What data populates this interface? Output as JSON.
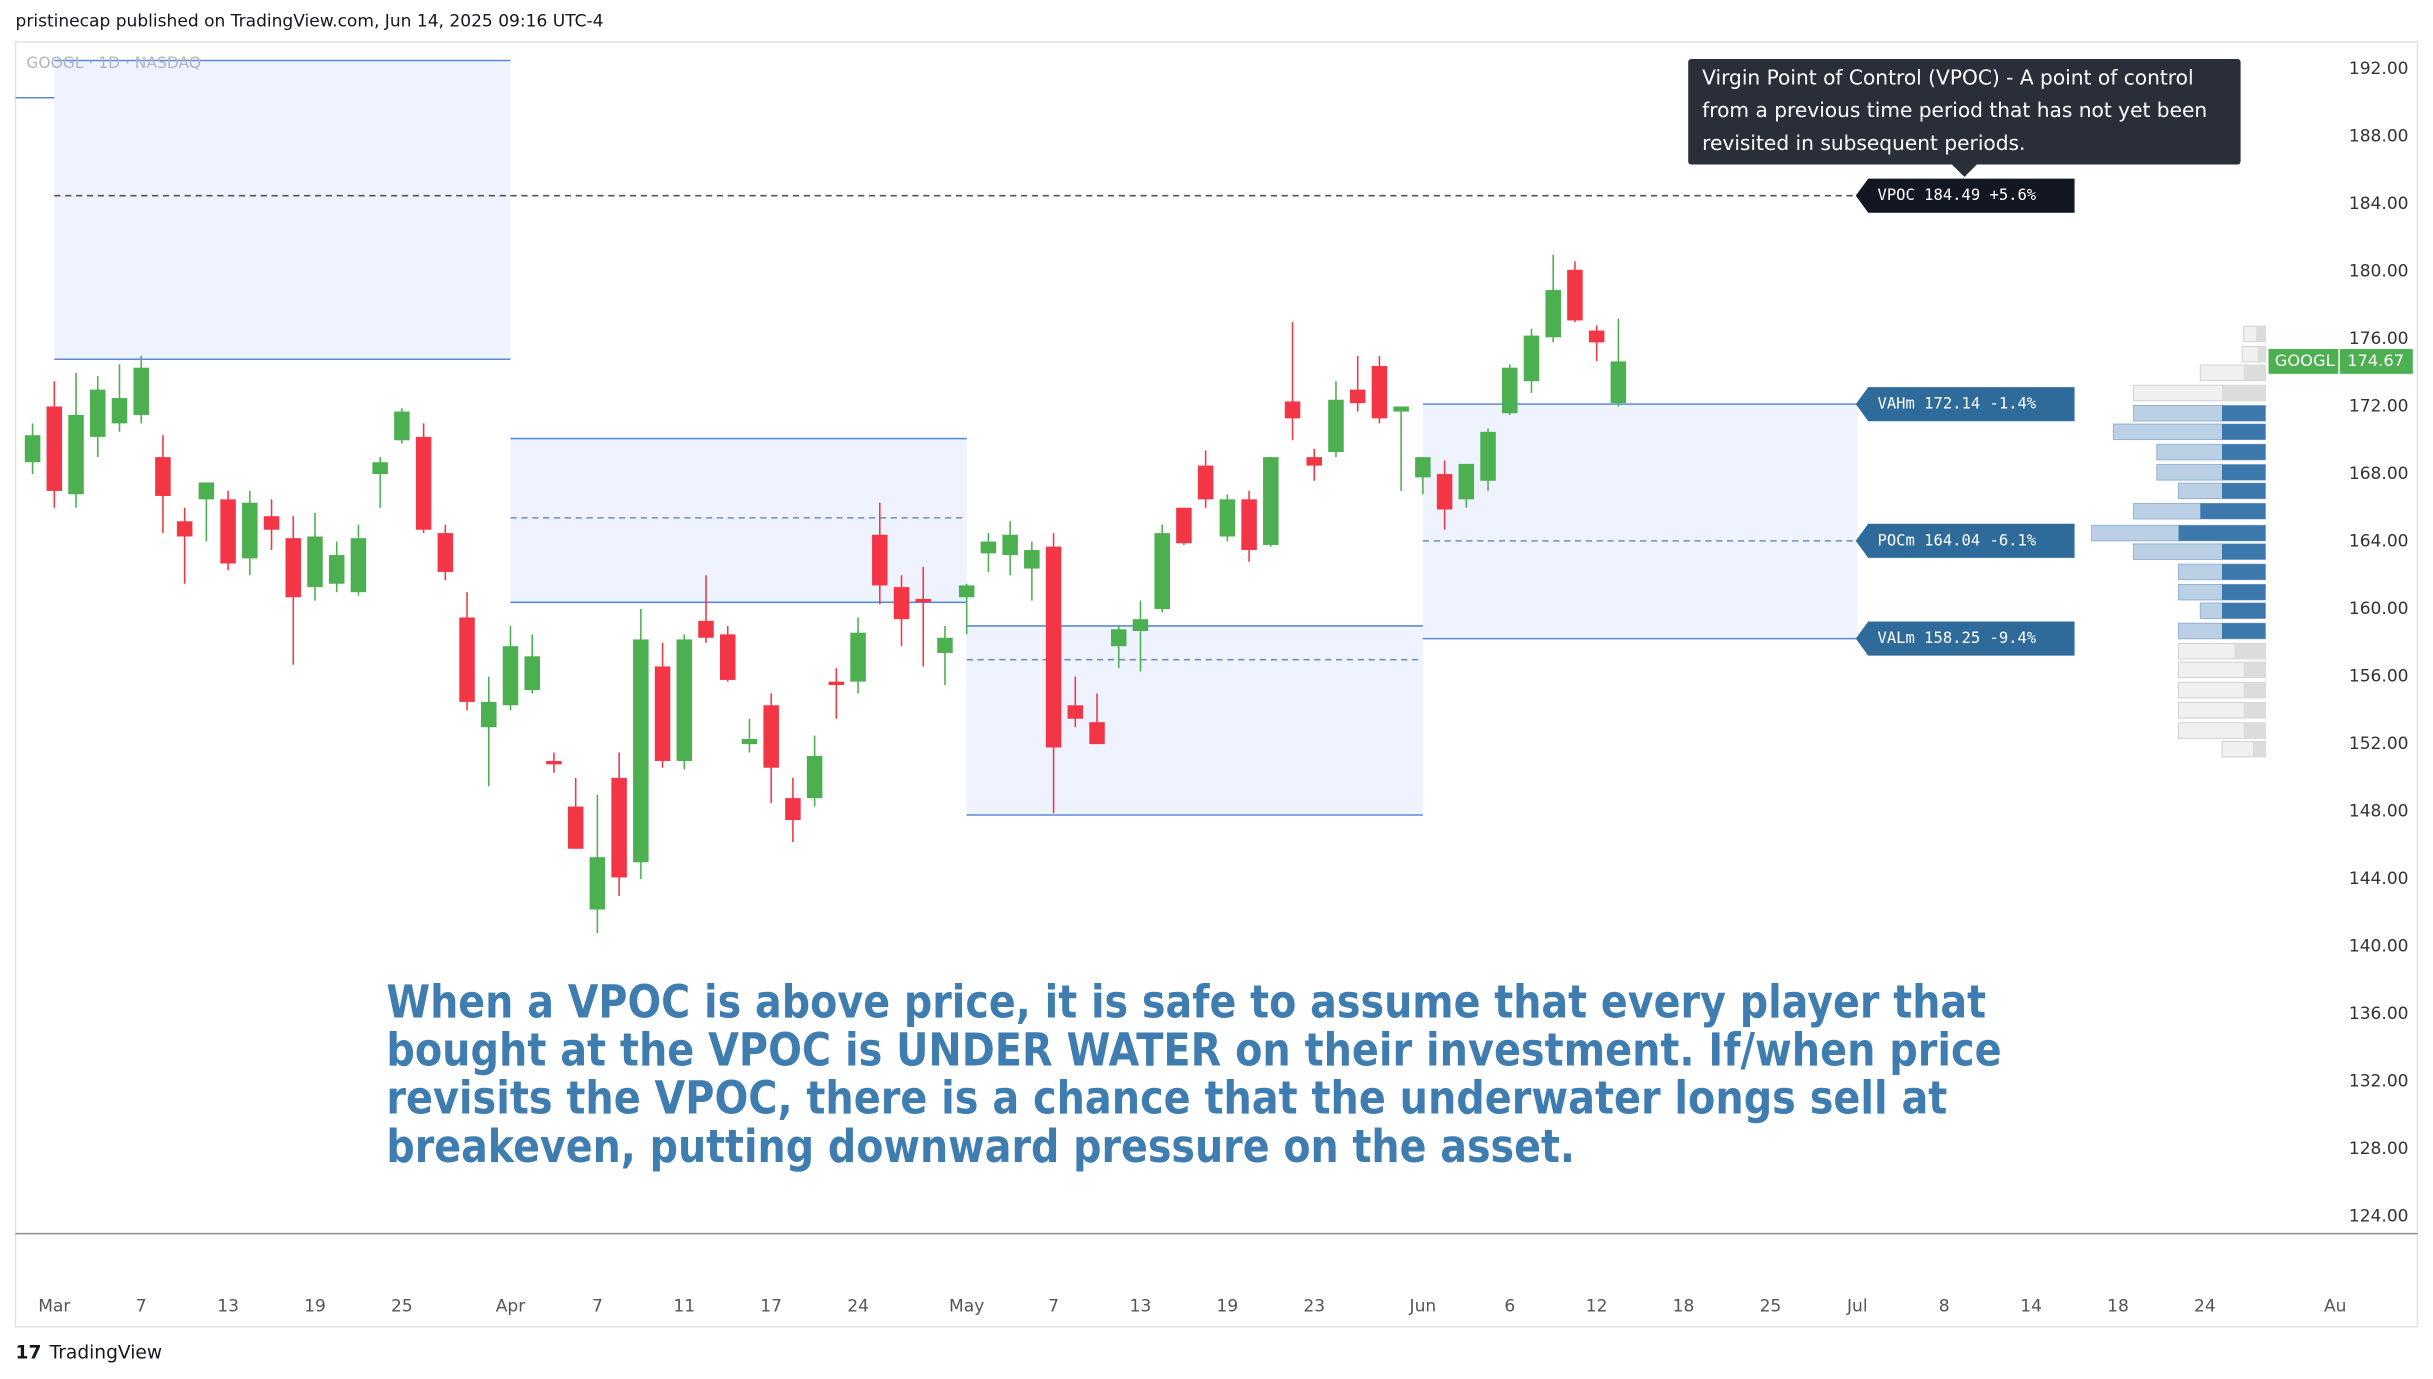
{
  "header": {
    "publisher": "pristinecap published on TradingView.com, Jun 14, 2025 09:16 UTC-4",
    "brand": "TradingView"
  },
  "chart_data": {
    "type": "candlestick",
    "symbol_line": "GOOGL · 1D · NASDAQ",
    "symbol": "GOOGL",
    "categories": [
      null,
      "Mar",
      null,
      null,
      null,
      "7",
      null,
      null,
      null,
      "13",
      null,
      null,
      null,
      "19",
      null,
      null,
      null,
      "25",
      null,
      null,
      null,
      null,
      "Apr",
      null,
      null,
      null,
      "7",
      null,
      null,
      null,
      "11",
      null,
      null,
      null,
      "17",
      null,
      null,
      null,
      "24",
      null,
      null,
      null,
      null,
      "May",
      null,
      null,
      null,
      "7",
      null,
      null,
      null,
      "13",
      null,
      null,
      null,
      "19",
      null,
      null,
      null,
      "23",
      null,
      null,
      null,
      null,
      "Jun",
      null,
      null,
      null,
      "6",
      null,
      null,
      null,
      "12",
      null,
      null,
      null,
      "18",
      null,
      null,
      null,
      "25",
      null,
      null,
      null,
      "Jul",
      null,
      null,
      null,
      "8",
      null,
      null,
      null,
      "14",
      null,
      null,
      null,
      "18",
      null,
      null,
      null,
      "24",
      null,
      null,
      null,
      null,
      null,
      "Au"
    ],
    "open": [
      168.7,
      172,
      166.8,
      170.2,
      171,
      171.5,
      169,
      165.2,
      166.5,
      166.5,
      163,
      165.5,
      164.2,
      161.3,
      161.5,
      161,
      168,
      170,
      170.2,
      164.5,
      159.5,
      153,
      154.3,
      155.2,
      151,
      148.3,
      142.2,
      150,
      145,
      156.6,
      151,
      159.3,
      158.5,
      152,
      154.3,
      148.8,
      148.8,
      155.7,
      155.7,
      164.4,
      161.3,
      160.6,
      157.4,
      160.7,
      163.3,
      163.2,
      162.4,
      163.7,
      154.3,
      153.3,
      157.8,
      158.7,
      160,
      166,
      168.5,
      164.3,
      166.5,
      163.8,
      172.3,
      169,
      169.3,
      173,
      174.4,
      171.7,
      167.8,
      168,
      166.5,
      167.6,
      171.6,
      173.5,
      176.1,
      180.1,
      176.5,
      172.2,
      null,
      null,
      null,
      null,
      null,
      null,
      null,
      null,
      null,
      null,
      null,
      null,
      null,
      null,
      null,
      null,
      null,
      null,
      null,
      null,
      null,
      null,
      null,
      null,
      null,
      null,
      null,
      null,
      null,
      null,
      null,
      null,
      null
    ],
    "high": [
      171,
      173.5,
      174,
      173.8,
      174.5,
      175,
      170.3,
      166,
      167.5,
      167,
      167,
      166.5,
      165.5,
      165.7,
      164,
      165,
      169,
      171.9,
      171,
      165,
      161,
      156,
      159,
      158.5,
      151.5,
      150,
      149,
      151.5,
      160,
      158,
      158.5,
      162,
      159,
      153.5,
      155,
      150,
      152.5,
      156.5,
      159.5,
      166.3,
      162,
      162.5,
      159,
      161.5,
      164.5,
      165.2,
      164,
      164.5,
      156,
      155,
      159,
      160.5,
      165,
      166,
      169.4,
      166.8,
      167,
      169,
      177,
      169.5,
      173.5,
      175,
      175,
      172,
      169,
      168.8,
      168,
      170.7,
      174.5,
      176.6,
      181,
      180.6,
      176.8,
      177.2,
      null,
      null,
      null,
      null,
      null,
      null,
      null,
      null,
      null,
      null,
      null,
      null,
      null,
      null,
      null,
      null,
      null,
      null,
      null,
      null,
      null,
      null,
      null,
      null,
      null,
      null,
      null,
      null,
      null,
      null,
      null,
      null,
      null
    ],
    "low": [
      168,
      166,
      166,
      169,
      170.5,
      171,
      164.5,
      161.5,
      164,
      162.3,
      162,
      163.5,
      156.7,
      160.5,
      161,
      160.8,
      166,
      169.8,
      164.5,
      161.7,
      154,
      149.5,
      154,
      155,
      150.3,
      145.8,
      140.8,
      143,
      144,
      150.6,
      150.5,
      158,
      155.7,
      151.5,
      148.5,
      146.2,
      148.3,
      153.5,
      155,
      160.3,
      157.8,
      156.6,
      155.5,
      158.5,
      162.2,
      162,
      160.5,
      147.9,
      153,
      152,
      156.5,
      156.3,
      159.8,
      163.8,
      166,
      164,
      162.8,
      163.7,
      170,
      167.6,
      169,
      171.7,
      171,
      167,
      166.8,
      164.7,
      166,
      167,
      171.5,
      172.8,
      175.8,
      177,
      174.7,
      172,
      null,
      null,
      null,
      null,
      null,
      null,
      null,
      null,
      null,
      null,
      null,
      null,
      null,
      null,
      null,
      null,
      null,
      null,
      null,
      null,
      null,
      null,
      null,
      null,
      null,
      null,
      null,
      null,
      null,
      null,
      null,
      null,
      null
    ],
    "close": [
      170.3,
      167,
      171.5,
      173,
      172.5,
      174.3,
      166.7,
      164.3,
      167.5,
      162.7,
      166.3,
      164.7,
      160.7,
      164.3,
      163.2,
      164.2,
      168.7,
      171.7,
      164.7,
      162.2,
      154.5,
      154.5,
      157.8,
      157.2,
      150.8,
      145.8,
      145.3,
      144.1,
      158.2,
      151,
      158.2,
      158.3,
      155.8,
      152.3,
      150.6,
      147.5,
      151.3,
      155.5,
      158.6,
      161.4,
      159.4,
      160.4,
      158.3,
      161.4,
      164,
      164.4,
      163.5,
      151.8,
      153.5,
      152,
      158.8,
      159.4,
      164.5,
      163.9,
      166.5,
      166.5,
      163.5,
      169,
      171.3,
      168.5,
      172.4,
      172.2,
      171.3,
      172,
      169,
      165.9,
      168.6,
      170.5,
      174.3,
      176.2,
      178.9,
      177.1,
      175.8,
      174.67,
      null,
      null,
      null,
      null,
      null,
      null,
      null,
      null,
      null,
      null,
      null,
      null,
      null,
      null,
      null,
      null,
      null,
      null,
      null,
      null,
      null,
      null,
      null,
      null,
      null,
      null,
      null,
      null,
      null,
      null,
      null,
      null,
      null
    ],
    "up_color": "#4caf50",
    "down_color": "#f23645",
    "ylim": [
      123,
      193.6
    ],
    "yticks": [
      {
        "value": 124,
        "label": "124.00"
      },
      {
        "value": 128,
        "label": "128.00"
      },
      {
        "value": 132,
        "label": "132.00"
      },
      {
        "value": 136,
        "label": "136.00"
      },
      {
        "value": 140,
        "label": "140.00"
      },
      {
        "value": 144,
        "label": "144.00"
      },
      {
        "value": 148,
        "label": "148.00"
      },
      {
        "value": 152,
        "label": "152.00"
      },
      {
        "value": 156,
        "label": "156.00"
      },
      {
        "value": 160,
        "label": "160.00"
      },
      {
        "value": 164,
        "label": "164.00"
      },
      {
        "value": 168,
        "label": "168.00"
      },
      {
        "value": 172,
        "label": "172.00"
      },
      {
        "value": 176,
        "label": "176.00"
      },
      {
        "value": 180,
        "label": "180.00"
      },
      {
        "value": 184,
        "label": "184.00"
      },
      {
        "value": 188,
        "label": "188.00"
      },
      {
        "value": 192,
        "label": "192.00"
      }
    ],
    "grid": false,
    "value_areas": [
      {
        "high": 192.5,
        "poc": 184.49,
        "low": 174.8
      },
      {
        "high": 170.1,
        "poc": 165.4,
        "low": 160.4
      },
      {
        "high": 159.0,
        "poc": 157.0,
        "low": 147.8
      },
      {
        "high": 172.14,
        "poc": 164.04,
        "low": 158.25
      }
    ],
    "level_labels": [
      "VPOC 184.49 +5.6%",
      "VAHm 172.14 -1.4%",
      "POCm 164.04 -6.1%",
      "VALm 158.25 -9.4%"
    ],
    "tooltip": [
      "Virgin Point of Control (VPOC) - A point of control",
      "from a previous time period that has not yet been",
      "revisited in subsequent periods."
    ],
    "annotation": [
      "When a VPOC is above price, it is safe to assume that every player that",
      "bought at the VPOC is UNDER WATER on their investment. If/when price",
      "revisits the VPOC, there is a chance that the underwater longs sell at",
      "breakeven, putting downward pressure on the asset."
    ],
    "volume_profile": {
      "prices": [
        176.3,
        175.1,
        174.0,
        172.8,
        171.6,
        170.5,
        169.3,
        168.1,
        167.0,
        165.8,
        164.5,
        163.4,
        162.2,
        161.0,
        159.9,
        158.7,
        157.5,
        156.4,
        155.2,
        154.0,
        152.8,
        151.7
      ],
      "total": [
        14,
        15,
        42,
        85,
        85,
        98,
        70,
        70,
        56,
        85,
        112,
        85,
        56,
        56,
        42,
        56,
        56,
        56,
        56,
        56,
        56,
        28
      ],
      "up": [
        6,
        5,
        14,
        28,
        28,
        28,
        28,
        28,
        28,
        42,
        56,
        28,
        28,
        28,
        28,
        28,
        20,
        14,
        14,
        14,
        14,
        8
      ]
    }
  }
}
